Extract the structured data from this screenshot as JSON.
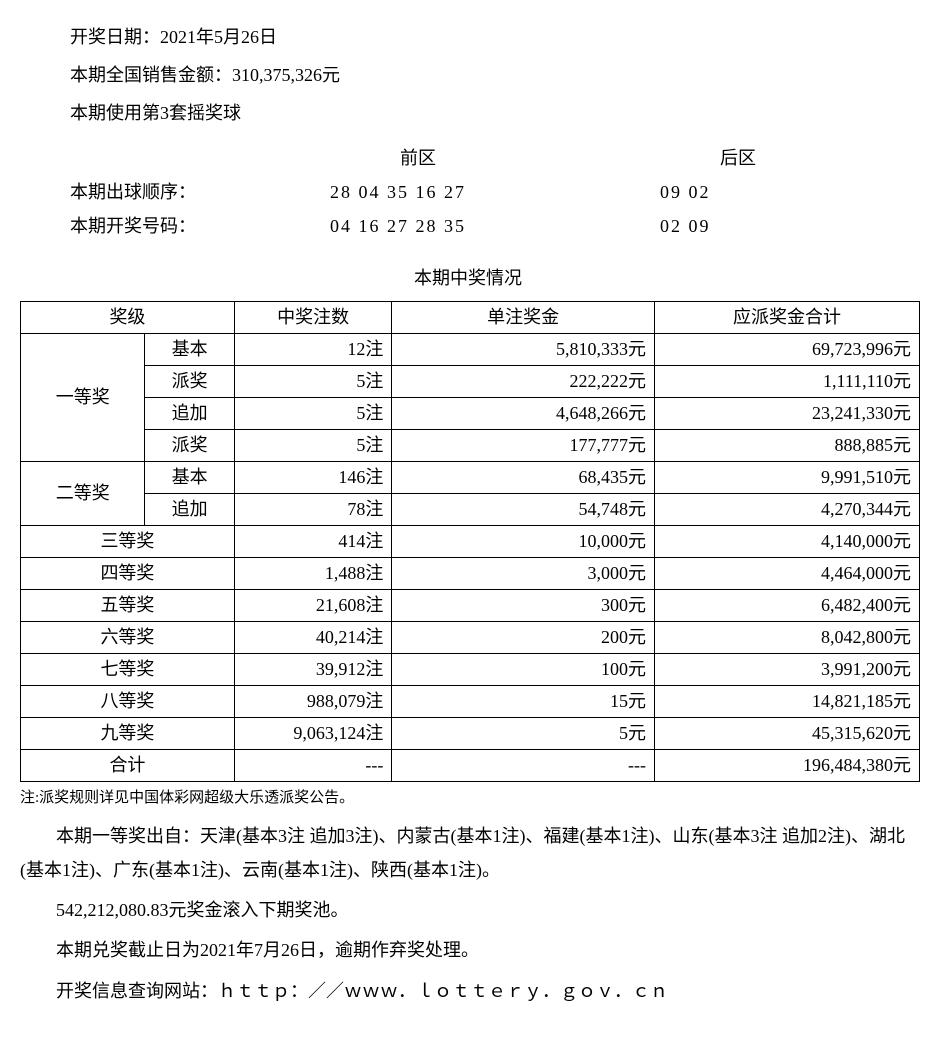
{
  "header": {
    "draw_date_label": "开奖日期：",
    "draw_date_value": "2021年5月26日",
    "sales_label": "本期全国销售金额：",
    "sales_value": "310,375,326元",
    "ballset_label": "本期使用第3套摇奖球"
  },
  "numbers": {
    "front_label": "前区",
    "back_label": "后区",
    "draw_order_label": "本期出球顺序：",
    "draw_order_front": "28 04 35 16 27",
    "draw_order_back": "09 02",
    "winning_label": "本期开奖号码：",
    "winning_front": "04 16 27 28 35",
    "winning_back": "02 09"
  },
  "table": {
    "title": "本期中奖情况",
    "columns": {
      "tier": "奖级",
      "count": "中奖注数",
      "unit_prize": "单注奖金",
      "total": "应派奖金合计"
    },
    "tier1_label": "一等奖",
    "tier1_rows": [
      {
        "sub": "基本",
        "count": "12注",
        "unit": "5,810,333元",
        "total": "69,723,996元"
      },
      {
        "sub": "派奖",
        "count": "5注",
        "unit": "222,222元",
        "total": "1,111,110元"
      },
      {
        "sub": "追加",
        "count": "5注",
        "unit": "4,648,266元",
        "total": "23,241,330元"
      },
      {
        "sub": "派奖",
        "count": "5注",
        "unit": "177,777元",
        "total": "888,885元"
      }
    ],
    "tier2_label": "二等奖",
    "tier2_rows": [
      {
        "sub": "基本",
        "count": "146注",
        "unit": "68,435元",
        "total": "9,991,510元"
      },
      {
        "sub": "追加",
        "count": "78注",
        "unit": "54,748元",
        "total": "4,270,344元"
      }
    ],
    "simple_rows": [
      {
        "tier": "三等奖",
        "count": "414注",
        "unit": "10,000元",
        "total": "4,140,000元"
      },
      {
        "tier": "四等奖",
        "count": "1,488注",
        "unit": "3,000元",
        "total": "4,464,000元"
      },
      {
        "tier": "五等奖",
        "count": "21,608注",
        "unit": "300元",
        "total": "6,482,400元"
      },
      {
        "tier": "六等奖",
        "count": "40,214注",
        "unit": "200元",
        "total": "8,042,800元"
      },
      {
        "tier": "七等奖",
        "count": "39,912注",
        "unit": "100元",
        "total": "3,991,200元"
      },
      {
        "tier": "八等奖",
        "count": "988,079注",
        "unit": "15元",
        "total": "14,821,185元"
      },
      {
        "tier": "九等奖",
        "count": "9,063,124注",
        "unit": "5元",
        "total": "45,315,620元"
      }
    ],
    "total_row": {
      "tier": "合计",
      "count": "---",
      "unit": "---",
      "total": "196,484,380元"
    }
  },
  "footer": {
    "note": "注:派奖规则详见中国体彩网超级大乐透派奖公告。",
    "winners": "本期一等奖出自：天津(基本3注 追加3注)、内蒙古(基本1注)、福建(基本1注)、山东(基本3注 追加2注)、湖北(基本1注)、广东(基本1注)、云南(基本1注)、陕西(基本1注)。",
    "rollover": "542,212,080.83元奖金滚入下期奖池。",
    "deadline": "本期兑奖截止日为2021年7月26日，逾期作弃奖处理。",
    "website": "开奖信息查询网站：ｈｔｔｐ：／／ｗｗｗ．ｌｏｔｔｅｒｙ．ｇｏｖ．ｃｎ"
  }
}
